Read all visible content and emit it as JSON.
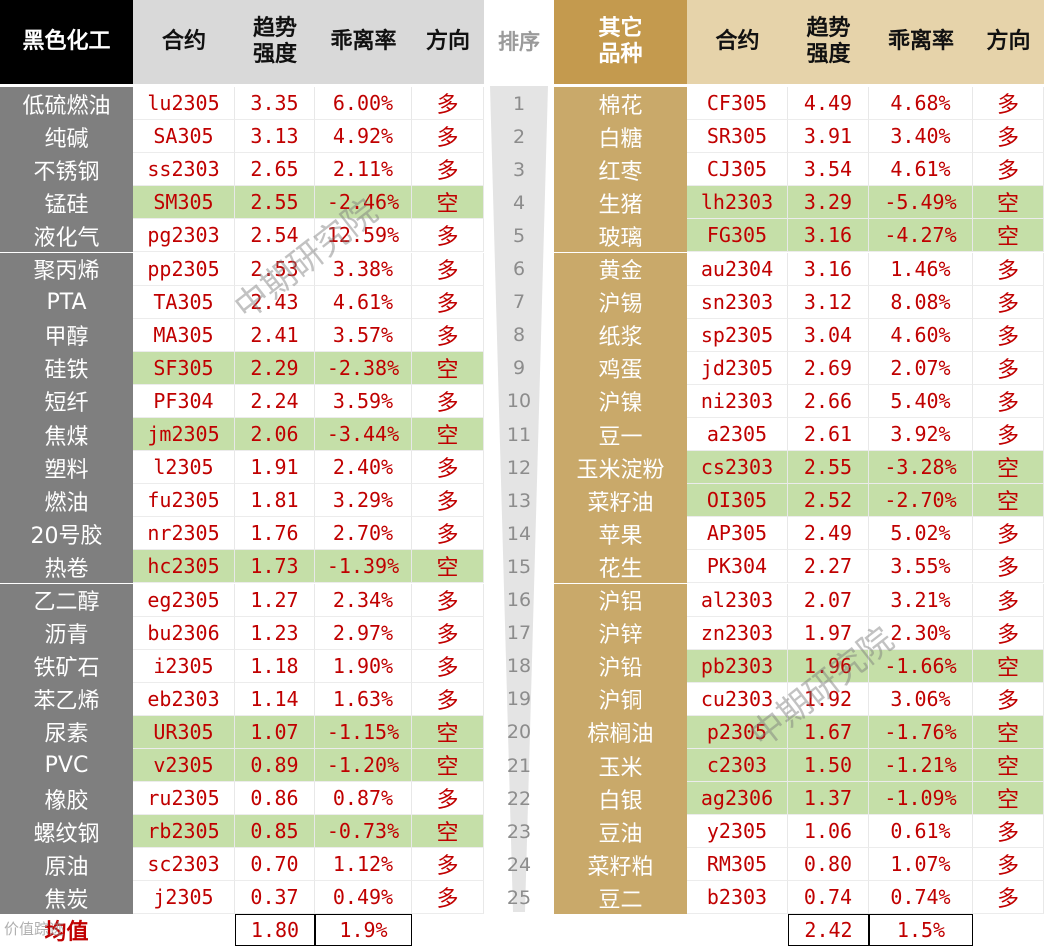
{
  "header": {
    "left_category": "黑色化工",
    "contract": "合约",
    "trend_strength": "趋势\n强度",
    "deviation": "乖离率",
    "direction": "方向",
    "rank": "排序",
    "right_category": "其它\n品种"
  },
  "left_rows": [
    {
      "name": "低硫燃油",
      "code": "lu2305",
      "strength": "3.35",
      "deviation": "6.00%",
      "dir": "多",
      "short": false
    },
    {
      "name": "纯碱",
      "code": "SA305",
      "strength": "3.13",
      "deviation": "4.92%",
      "dir": "多",
      "short": false
    },
    {
      "name": "不锈钢",
      "code": "ss2303",
      "strength": "2.65",
      "deviation": "2.11%",
      "dir": "多",
      "short": false
    },
    {
      "name": "锰硅",
      "code": "SM305",
      "strength": "2.55",
      "deviation": "-2.46%",
      "dir": "空",
      "short": true
    },
    {
      "name": "液化气",
      "code": "pg2303",
      "strength": "2.54",
      "deviation": "12.59%",
      "dir": "多",
      "short": false
    },
    {
      "name": "聚丙烯",
      "code": "pp2305",
      "strength": "2.53",
      "deviation": "3.38%",
      "dir": "多",
      "short": false
    },
    {
      "name": "PTA",
      "code": "TA305",
      "strength": "2.43",
      "deviation": "4.61%",
      "dir": "多",
      "short": false
    },
    {
      "name": "甲醇",
      "code": "MA305",
      "strength": "2.41",
      "deviation": "3.57%",
      "dir": "多",
      "short": false
    },
    {
      "name": "硅铁",
      "code": "SF305",
      "strength": "2.29",
      "deviation": "-2.38%",
      "dir": "空",
      "short": true
    },
    {
      "name": "短纤",
      "code": "PF304",
      "strength": "2.24",
      "deviation": "3.59%",
      "dir": "多",
      "short": false
    },
    {
      "name": "焦煤",
      "code": "jm2305",
      "strength": "2.06",
      "deviation": "-3.44%",
      "dir": "空",
      "short": true
    },
    {
      "name": "塑料",
      "code": "l2305",
      "strength": "1.91",
      "deviation": "2.40%",
      "dir": "多",
      "short": false
    },
    {
      "name": "燃油",
      "code": "fu2305",
      "strength": "1.81",
      "deviation": "3.29%",
      "dir": "多",
      "short": false
    },
    {
      "name": "20号胶",
      "code": "nr2305",
      "strength": "1.76",
      "deviation": "2.70%",
      "dir": "多",
      "short": false
    },
    {
      "name": "热卷",
      "code": "hc2305",
      "strength": "1.73",
      "deviation": "-1.39%",
      "dir": "空",
      "short": true
    },
    {
      "name": "乙二醇",
      "code": "eg2305",
      "strength": "1.27",
      "deviation": "2.34%",
      "dir": "多",
      "short": false
    },
    {
      "name": "沥青",
      "code": "bu2306",
      "strength": "1.23",
      "deviation": "2.97%",
      "dir": "多",
      "short": false
    },
    {
      "name": "铁矿石",
      "code": "i2305",
      "strength": "1.18",
      "deviation": "1.90%",
      "dir": "多",
      "short": false
    },
    {
      "name": "苯乙烯",
      "code": "eb2303",
      "strength": "1.14",
      "deviation": "1.63%",
      "dir": "多",
      "short": false
    },
    {
      "name": "尿素",
      "code": "UR305",
      "strength": "1.07",
      "deviation": "-1.15%",
      "dir": "空",
      "short": true
    },
    {
      "name": "PVC",
      "code": "v2305",
      "strength": "0.89",
      "deviation": "-1.20%",
      "dir": "空",
      "short": true
    },
    {
      "name": "橡胶",
      "code": "ru2305",
      "strength": "0.86",
      "deviation": "0.87%",
      "dir": "多",
      "short": false
    },
    {
      "name": "螺纹钢",
      "code": "rb2305",
      "strength": "0.85",
      "deviation": "-0.73%",
      "dir": "空",
      "short": true
    },
    {
      "name": "原油",
      "code": "sc2303",
      "strength": "0.70",
      "deviation": "1.12%",
      "dir": "多",
      "short": false
    },
    {
      "name": "焦炭",
      "code": "j2305",
      "strength": "0.37",
      "deviation": "0.49%",
      "dir": "多",
      "short": false
    }
  ],
  "ranks": [
    "1",
    "2",
    "3",
    "4",
    "5",
    "6",
    "7",
    "8",
    "9",
    "10",
    "11",
    "12",
    "13",
    "14",
    "15",
    "16",
    "17",
    "18",
    "19",
    "20",
    "21",
    "22",
    "23",
    "24",
    "25"
  ],
  "right_rows": [
    {
      "name": "棉花",
      "code": "CF305",
      "strength": "4.49",
      "deviation": "4.68%",
      "dir": "多",
      "short": false
    },
    {
      "name": "白糖",
      "code": "SR305",
      "strength": "3.91",
      "deviation": "3.40%",
      "dir": "多",
      "short": false
    },
    {
      "name": "红枣",
      "code": "CJ305",
      "strength": "3.54",
      "deviation": "4.61%",
      "dir": "多",
      "short": false
    },
    {
      "name": "生猪",
      "code": "lh2303",
      "strength": "3.29",
      "deviation": "-5.49%",
      "dir": "空",
      "short": true
    },
    {
      "name": "玻璃",
      "code": "FG305",
      "strength": "3.16",
      "deviation": "-4.27%",
      "dir": "空",
      "short": true
    },
    {
      "name": "黄金",
      "code": "au2304",
      "strength": "3.16",
      "deviation": "1.46%",
      "dir": "多",
      "short": false
    },
    {
      "name": "沪锡",
      "code": "sn2303",
      "strength": "3.12",
      "deviation": "8.08%",
      "dir": "多",
      "short": false
    },
    {
      "name": "纸浆",
      "code": "sp2305",
      "strength": "3.04",
      "deviation": "4.60%",
      "dir": "多",
      "short": false
    },
    {
      "name": "鸡蛋",
      "code": "jd2305",
      "strength": "2.69",
      "deviation": "2.07%",
      "dir": "多",
      "short": false
    },
    {
      "name": "沪镍",
      "code": "ni2303",
      "strength": "2.66",
      "deviation": "5.40%",
      "dir": "多",
      "short": false
    },
    {
      "name": "豆一",
      "code": "a2305",
      "strength": "2.61",
      "deviation": "3.92%",
      "dir": "多",
      "short": false
    },
    {
      "name": "玉米淀粉",
      "code": "cs2303",
      "strength": "2.55",
      "deviation": "-3.28%",
      "dir": "空",
      "short": true
    },
    {
      "name": "菜籽油",
      "code": "OI305",
      "strength": "2.52",
      "deviation": "-2.70%",
      "dir": "空",
      "short": true
    },
    {
      "name": "苹果",
      "code": "AP305",
      "strength": "2.49",
      "deviation": "5.02%",
      "dir": "多",
      "short": false
    },
    {
      "name": "花生",
      "code": "PK304",
      "strength": "2.27",
      "deviation": "3.55%",
      "dir": "多",
      "short": false
    },
    {
      "name": "沪铝",
      "code": "al2303",
      "strength": "2.07",
      "deviation": "3.21%",
      "dir": "多",
      "short": false
    },
    {
      "name": "沪锌",
      "code": "zn2303",
      "strength": "1.97",
      "deviation": "2.30%",
      "dir": "多",
      "short": false
    },
    {
      "name": "沪铅",
      "code": "pb2303",
      "strength": "1.96",
      "deviation": "-1.66%",
      "dir": "空",
      "short": true
    },
    {
      "name": "沪铜",
      "code": "cu2303",
      "strength": "1.92",
      "deviation": "3.06%",
      "dir": "多",
      "short": false
    },
    {
      "name": "棕榈油",
      "code": "p2305",
      "strength": "1.67",
      "deviation": "-1.76%",
      "dir": "空",
      "short": true
    },
    {
      "name": "玉米",
      "code": "c2303",
      "strength": "1.50",
      "deviation": "-1.21%",
      "dir": "空",
      "short": true
    },
    {
      "name": "白银",
      "code": "ag2306",
      "strength": "1.37",
      "deviation": "-1.09%",
      "dir": "空",
      "short": true
    },
    {
      "name": "豆油",
      "code": "y2305",
      "strength": "1.06",
      "deviation": "0.61%",
      "dir": "多",
      "short": false
    },
    {
      "name": "菜籽粕",
      "code": "RM305",
      "strength": "0.80",
      "deviation": "1.07%",
      "dir": "多",
      "short": false
    },
    {
      "name": "豆二",
      "code": "b2303",
      "strength": "0.74",
      "deviation": "0.74%",
      "dir": "多",
      "short": false
    }
  ],
  "footer": {
    "label": "均值",
    "left_avg_strength": "1.80",
    "left_avg_deviation": "1.9%",
    "right_avg_strength": "2.42",
    "right_avg_deviation": "1.5%"
  },
  "watermark": "中期研究院",
  "logo_text": "价值踪迹",
  "colors": {
    "black_header": "#000000",
    "gold_header": "#c49a4e",
    "left_category_bg": "#7f7f7f",
    "right_category_bg": "#c9a96a",
    "short_highlight": "#c5dfa8",
    "value_text": "#c00000"
  }
}
